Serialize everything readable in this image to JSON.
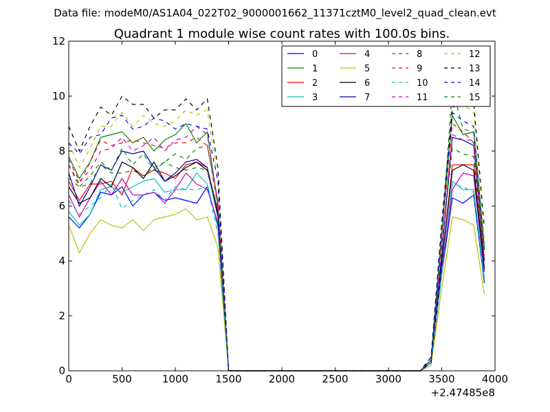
{
  "suptitle": "Data file: modeM0/AS1A04_022T02_9000001662_11371cztM0_level2_quad_clean.evt",
  "chart_data": {
    "type": "line",
    "title": "Quadrant 1 module wise count rates with 100.0s bins.",
    "xlabel": "",
    "ylabel": "",
    "x_offset_label": "+2.47485e8",
    "xlim": [
      0,
      4000
    ],
    "ylim": [
      0,
      12
    ],
    "xticks": [
      "0",
      "500",
      "1000",
      "1500",
      "2000",
      "2500",
      "3000",
      "3500",
      "4000"
    ],
    "yticks": [
      "0",
      "2",
      "4",
      "6",
      "8",
      "10",
      "12"
    ],
    "grid": false,
    "legend_position": "top-right",
    "legend_columns": 4,
    "x": [
      0,
      100,
      200,
      300,
      400,
      500,
      600,
      700,
      800,
      900,
      1000,
      1100,
      1200,
      1300,
      1400,
      1500,
      1600,
      1700,
      1800,
      1900,
      2000,
      2100,
      2200,
      2300,
      2400,
      2500,
      2600,
      2700,
      2800,
      2900,
      3000,
      3100,
      3200,
      3300,
      3400,
      3500,
      3600,
      3700,
      3800,
      3900
    ],
    "series": [
      {
        "name": "0",
        "color": "#0000ff",
        "dash": "solid",
        "values": [
          5.6,
          5.2,
          5.7,
          6.5,
          6.4,
          6.7,
          6.0,
          6.4,
          6.5,
          6.2,
          6.3,
          6.2,
          6.1,
          6.7,
          5.3,
          0,
          0,
          0,
          0,
          0,
          0,
          0,
          0,
          0,
          0,
          0,
          0,
          0,
          0,
          0,
          0,
          0,
          0,
          0,
          0.3,
          3.5,
          6.3,
          6.1,
          6.4,
          3.2
        ]
      },
      {
        "name": "1",
        "color": "#008000",
        "dash": "solid",
        "values": [
          7.8,
          7.0,
          7.6,
          8.5,
          8.6,
          8.7,
          8.3,
          8.5,
          8.0,
          8.4,
          8.6,
          9.0,
          8.3,
          8.7,
          6.0,
          0,
          0,
          0,
          0,
          0,
          0,
          0,
          0,
          0,
          0,
          0,
          0,
          0,
          0,
          0,
          0,
          0,
          0,
          0,
          0.4,
          5.0,
          9.3,
          8.6,
          8.7,
          4.5
        ]
      },
      {
        "name": "2",
        "color": "#ff0000",
        "dash": "solid",
        "values": [
          6.9,
          6.2,
          6.8,
          6.8,
          6.9,
          6.4,
          7.4,
          7.1,
          7.3,
          7.2,
          7.0,
          7.5,
          7.6,
          7.4,
          5.8,
          0,
          0,
          0,
          0,
          0,
          0,
          0,
          0,
          0,
          0,
          0,
          0,
          0,
          0,
          0,
          0,
          0,
          0,
          0,
          0.3,
          3.9,
          7.5,
          7.5,
          7.5,
          3.8
        ]
      },
      {
        "name": "3",
        "color": "#00bfbf",
        "dash": "solid",
        "values": [
          5.8,
          5.3,
          5.7,
          6.6,
          6.7,
          6.5,
          6.7,
          6.9,
          7.0,
          6.5,
          6.6,
          6.6,
          7.2,
          6.8,
          5.2,
          0,
          0,
          0,
          0,
          0,
          0,
          0,
          0,
          0,
          0,
          0,
          0,
          0,
          0,
          0,
          0,
          0,
          0,
          0,
          0.3,
          3.5,
          6.9,
          6.6,
          6.6,
          3.4
        ]
      },
      {
        "name": "4",
        "color": "#bf00bf",
        "dash": "solid",
        "values": [
          6.4,
          5.6,
          6.3,
          6.9,
          6.4,
          7.0,
          6.4,
          6.4,
          6.5,
          6.1,
          6.6,
          7.2,
          6.8,
          6.6,
          5.4,
          0,
          0,
          0,
          0,
          0,
          0,
          0,
          0,
          0,
          0,
          0,
          0,
          0,
          0,
          0,
          0,
          0,
          0,
          0,
          0.3,
          3.7,
          6.6,
          7.2,
          7.1,
          3.6
        ]
      },
      {
        "name": "5",
        "color": "#bfbf00",
        "dash": "solid",
        "values": [
          5.3,
          4.3,
          5.0,
          5.5,
          5.3,
          5.2,
          5.5,
          5.1,
          5.5,
          5.6,
          5.7,
          5.9,
          5.5,
          5.6,
          4.5,
          0,
          0,
          0,
          0,
          0,
          0,
          0,
          0,
          0,
          0,
          0,
          0,
          0,
          0,
          0,
          0,
          0,
          0,
          0,
          0.2,
          3.0,
          5.6,
          5.5,
          5.3,
          2.8
        ]
      },
      {
        "name": "6",
        "color": "#000000",
        "dash": "solid",
        "values": [
          6.7,
          6.1,
          6.3,
          7.0,
          6.7,
          7.6,
          7.4,
          7.0,
          7.6,
          6.9,
          7.1,
          7.4,
          7.6,
          7.3,
          5.7,
          0,
          0,
          0,
          0,
          0,
          0,
          0,
          0,
          0,
          0,
          0,
          0,
          0,
          0,
          0,
          0,
          0,
          0,
          0,
          0.3,
          3.9,
          7.3,
          7.5,
          7.3,
          3.7
        ]
      },
      {
        "name": "7",
        "color": "#0000bf",
        "dash": "solid",
        "values": [
          7.2,
          6.0,
          6.7,
          7.5,
          7.3,
          8.0,
          7.9,
          8.0,
          7.4,
          6.9,
          7.2,
          7.6,
          7.7,
          7.4,
          5.6,
          0,
          0,
          0,
          0,
          0,
          0,
          0,
          0,
          0,
          0,
          0,
          0,
          0,
          0,
          0,
          0,
          0,
          0,
          0,
          0.3,
          4.2,
          8.5,
          8.4,
          8.2,
          4.0
        ]
      },
      {
        "name": "8",
        "color": "#008000",
        "dash": "dashed",
        "values": [
          7.5,
          6.7,
          7.1,
          7.6,
          7.3,
          8.1,
          7.5,
          7.9,
          7.3,
          7.6,
          7.9,
          7.7,
          8.1,
          8.2,
          6.0,
          0,
          0,
          0,
          0,
          0,
          0,
          0,
          0,
          0,
          0,
          0,
          0,
          0,
          0,
          0,
          0,
          0,
          0,
          0,
          0.4,
          4.6,
          8.1,
          7.9,
          7.8,
          4.0
        ]
      },
      {
        "name": "9",
        "color": "#ff0000",
        "dash": "dashed",
        "values": [
          7.5,
          6.8,
          7.6,
          8.4,
          8.2,
          8.3,
          8.4,
          8.3,
          8.2,
          8.1,
          8.3,
          8.3,
          8.5,
          8.2,
          6.2,
          0,
          0,
          0,
          0,
          0,
          0,
          0,
          0,
          0,
          0,
          0,
          0,
          0,
          0,
          0,
          0,
          0,
          0,
          0,
          0.4,
          4.8,
          9.0,
          8.7,
          8.3,
          4.2
        ]
      },
      {
        "name": "10",
        "color": "#00bfbf",
        "dash": "dashed",
        "values": [
          6.2,
          5.7,
          6.0,
          6.3,
          6.8,
          5.9,
          6.2,
          6.4,
          6.6,
          6.2,
          6.7,
          6.6,
          6.6,
          6.7,
          5.0,
          0,
          0,
          0,
          0,
          0,
          0,
          0,
          0,
          0,
          0,
          0,
          0,
          0,
          0,
          0,
          0,
          0,
          0,
          0,
          0.3,
          3.7,
          6.8,
          6.7,
          6.5,
          3.3
        ]
      },
      {
        "name": "11",
        "color": "#bf00bf",
        "dash": "dashed",
        "values": [
          7.7,
          6.9,
          7.3,
          8.0,
          8.1,
          8.5,
          8.0,
          8.2,
          8.5,
          8.0,
          8.4,
          8.5,
          8.9,
          8.6,
          6.1,
          0,
          0,
          0,
          0,
          0,
          0,
          0,
          0,
          0,
          0,
          0,
          0,
          0,
          0,
          0,
          0,
          0,
          0,
          0,
          0.4,
          4.5,
          8.6,
          8.4,
          8.4,
          4.1
        ]
      },
      {
        "name": "12",
        "color": "#bfbf00",
        "dash": "dashed",
        "values": [
          8.3,
          7.4,
          8.1,
          8.9,
          8.9,
          9.4,
          8.9,
          9.3,
          9.0,
          8.9,
          9.1,
          9.5,
          9.3,
          9.5,
          7.0,
          0,
          0,
          0,
          0,
          0,
          0,
          0,
          0,
          0,
          0,
          0,
          0,
          0,
          0,
          0,
          0,
          0,
          0,
          0,
          0.5,
          5.2,
          9.9,
          9.7,
          9.4,
          4.8
        ]
      },
      {
        "name": "13",
        "color": "#000000",
        "dash": "dashed",
        "values": [
          8.9,
          8.0,
          8.9,
          9.6,
          9.3,
          10.0,
          9.7,
          9.7,
          9.2,
          9.5,
          9.5,
          9.9,
          9.5,
          9.9,
          7.4,
          0,
          0,
          0,
          0,
          0,
          0,
          0,
          0,
          0,
          0,
          0,
          0,
          0,
          0,
          0,
          0,
          0,
          0,
          0,
          0.5,
          5.4,
          9.6,
          9.7,
          9.8,
          5.2
        ]
      },
      {
        "name": "14",
        "color": "#0000ff",
        "dash": "dashed",
        "values": [
          8.3,
          7.9,
          8.5,
          8.6,
          9.2,
          9.3,
          8.8,
          8.9,
          9.2,
          9.1,
          8.8,
          9.0,
          8.9,
          8.8,
          6.9,
          0,
          0,
          0,
          0,
          0,
          0,
          0,
          0,
          0,
          0,
          0,
          0,
          0,
          0,
          0,
          0,
          0,
          0,
          0,
          0.4,
          5.3,
          9.4,
          9.1,
          8.9,
          4.4
        ]
      },
      {
        "name": "15",
        "color": "#008000",
        "dash": "dashed",
        "values": [
          7.0,
          6.7,
          6.8,
          7.5,
          7.2,
          7.2,
          7.3,
          7.1,
          7.4,
          7.6,
          7.4,
          7.3,
          7.4,
          7.3,
          5.9,
          0,
          0,
          0,
          0,
          0,
          0,
          0,
          0,
          0,
          0,
          0,
          0,
          0,
          0,
          0,
          0,
          0,
          0,
          0,
          0.4,
          4.9,
          10.3,
          8.8,
          8.7,
          4.3
        ]
      }
    ]
  }
}
